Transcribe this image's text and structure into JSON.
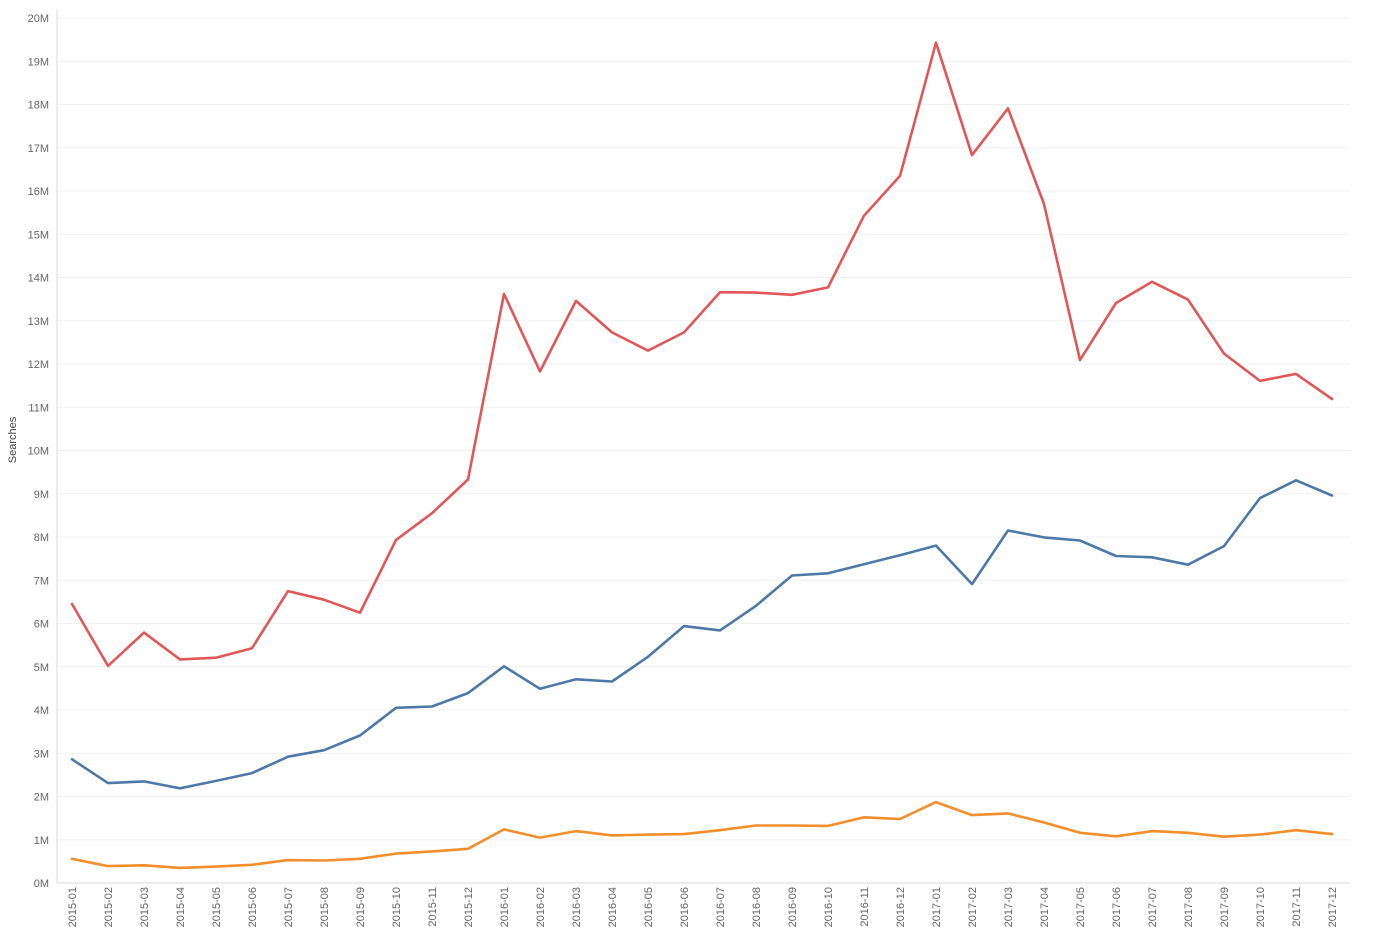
{
  "chart_data": {
    "type": "line",
    "ylabel": "Searches",
    "xlabel": "",
    "ylim": [
      0,
      20
    ],
    "y_unit": "M",
    "grid": true,
    "yticks": [
      0,
      1,
      2,
      3,
      4,
      5,
      6,
      7,
      8,
      9,
      10,
      11,
      12,
      13,
      14,
      15,
      16,
      17,
      18,
      19,
      20
    ],
    "ytick_labels": [
      "0M",
      "1M",
      "2M",
      "3M",
      "4M",
      "5M",
      "6M",
      "7M",
      "8M",
      "9M",
      "10M",
      "11M",
      "12M",
      "13M",
      "14M",
      "15M",
      "16M",
      "17M",
      "18M",
      "19M",
      "20M"
    ],
    "categories": [
      "2015-01",
      "2015-02",
      "2015-03",
      "2015-04",
      "2015-05",
      "2015-06",
      "2015-07",
      "2015-08",
      "2015-09",
      "2015-10",
      "2015-11",
      "2015-12",
      "2016-01",
      "2016-02",
      "2016-03",
      "2016-04",
      "2016-05",
      "2016-06",
      "2016-07",
      "2016-08",
      "2016-09",
      "2016-10",
      "2016-11",
      "2016-12",
      "2017-01",
      "2017-02",
      "2017-03",
      "2017-04",
      "2017-05",
      "2017-06",
      "2017-07",
      "2017-08",
      "2017-09",
      "2017-10",
      "2017-11",
      "2017-12"
    ],
    "series": [
      {
        "color": "#e15759",
        "values": [
          6.45,
          5.02,
          5.79,
          5.17,
          5.21,
          5.43,
          6.75,
          6.55,
          6.25,
          7.93,
          8.55,
          9.33,
          13.62,
          11.83,
          13.46,
          12.73,
          12.31,
          12.73,
          13.66,
          13.65,
          13.6,
          13.77,
          15.43,
          16.35,
          19.43,
          16.83,
          17.91,
          15.7,
          12.09,
          13.41,
          13.9,
          13.49,
          12.24,
          11.61,
          11.77,
          11.19
        ]
      },
      {
        "color": "#4e79a7",
        "values": [
          2.86,
          2.31,
          2.35,
          2.19,
          2.36,
          2.54,
          2.92,
          3.07,
          3.41,
          4.05,
          4.08,
          4.39,
          5.01,
          4.49,
          4.71,
          4.66,
          5.23,
          5.94,
          5.84,
          6.41,
          7.11,
          7.16,
          7.37,
          7.58,
          7.8,
          6.91,
          8.15,
          7.99,
          7.92,
          7.56,
          7.53,
          7.36,
          7.79,
          8.9,
          9.31,
          8.96
        ]
      },
      {
        "color": "#f28e2b",
        "values": [
          0.56,
          0.39,
          0.41,
          0.35,
          0.38,
          0.42,
          0.53,
          0.52,
          0.56,
          0.68,
          0.73,
          0.79,
          1.24,
          1.05,
          1.2,
          1.1,
          1.12,
          1.13,
          1.22,
          1.33,
          1.33,
          1.32,
          1.52,
          1.48,
          1.87,
          1.57,
          1.61,
          1.4,
          1.16,
          1.08,
          1.2,
          1.16,
          1.07,
          1.12,
          1.22,
          1.13
        ]
      }
    ]
  }
}
